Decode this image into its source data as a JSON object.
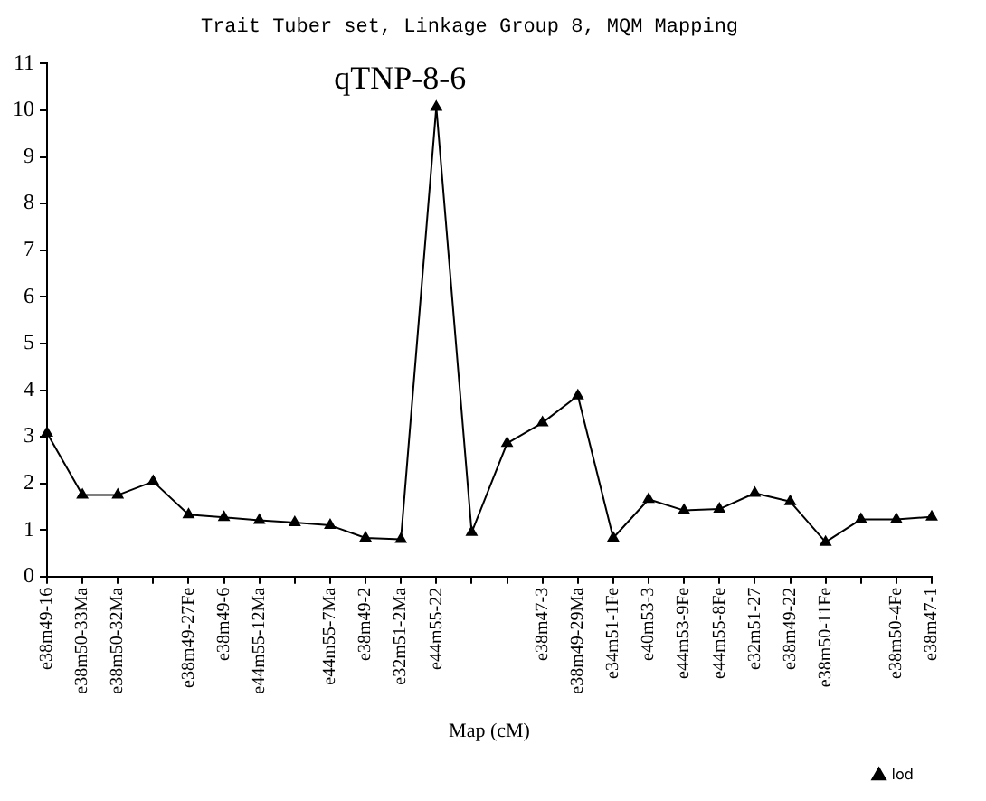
{
  "chart_data": {
    "type": "line",
    "title": "Trait Tuber set, Linkage Group 8, MQM Mapping",
    "xlabel": "Map (cM)",
    "annotations": [
      {
        "text": "qTNP-8-6",
        "x": "e44m55-22",
        "y": 10.07
      }
    ],
    "categories": [
      "e38m49-16",
      "e38m50-33Ma",
      "e38m50-32Ma",
      null,
      "e38m49-27Fe",
      "e38m49-6",
      "e44m55-12Ma",
      null,
      "e44m55-7Ma",
      "e38m49-2",
      "e32m51-2Ma",
      "e44m55-22",
      null,
      null,
      "e38m47-3",
      "e38m49-29Ma",
      "e34m51-1Fe",
      "e40m53-3",
      "e44m53-9Fe",
      "e44m55-8Fe",
      "e32m51-27",
      "e38m49-22",
      "e38m50-11Fe",
      null,
      "e38m50-4Fe",
      "e38m47-1"
    ],
    "series": [
      {
        "name": "lod",
        "color": "#000000",
        "values": [
          3.08,
          1.75,
          1.75,
          2.04,
          1.33,
          1.27,
          1.21,
          1.16,
          1.1,
          0.83,
          0.8,
          10.07,
          0.95,
          2.86,
          3.3,
          3.88,
          0.83,
          1.66,
          1.42,
          1.45,
          1.79,
          1.61,
          0.74,
          1.23,
          1.23,
          1.28
        ]
      }
    ],
    "ylim": [
      0,
      11
    ],
    "yticks": [
      0,
      1,
      2,
      3,
      4,
      5,
      6,
      7,
      8,
      9,
      10,
      11
    ],
    "grid": false,
    "legend": "bottom right",
    "marker": "triangle",
    "line_style": "solid"
  }
}
